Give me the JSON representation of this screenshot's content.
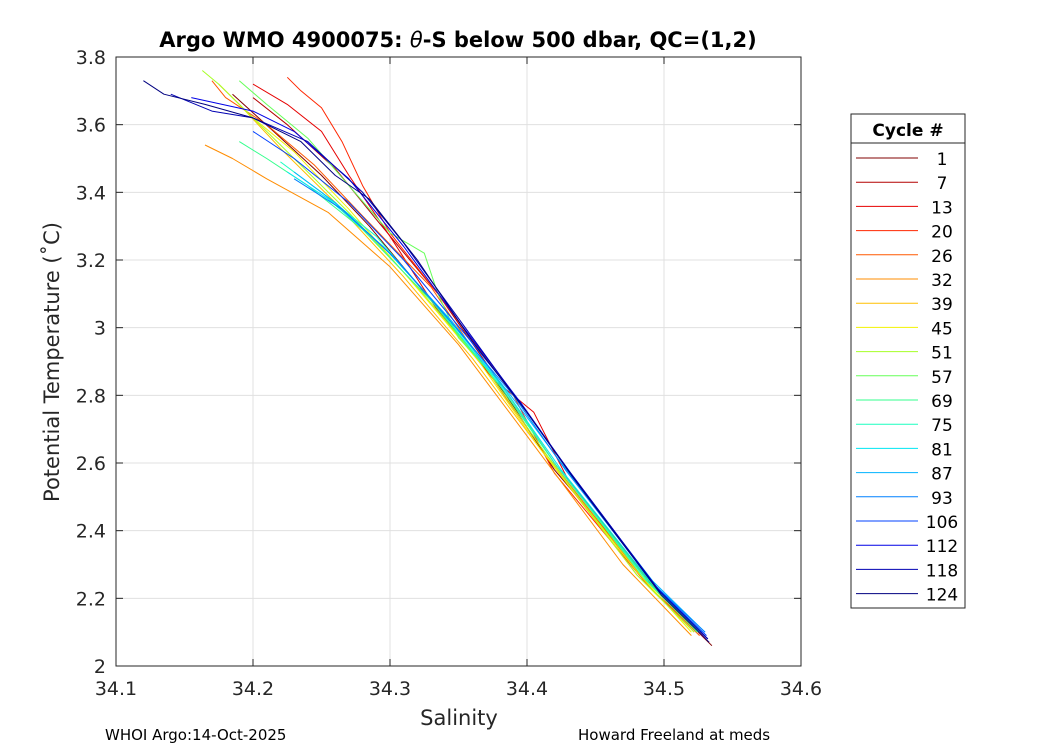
{
  "chart_data": {
    "type": "line",
    "title_prefix": "Argo WMO 4900075: ",
    "title_symbol": "θ",
    "title_suffix": "-S below 500 dbar,  QC=(1,2)",
    "xlabel": "Salinity",
    "ylabel": "Potential Temperature (˚C)",
    "xlim": [
      34.1,
      34.6
    ],
    "ylim": [
      2.0,
      3.8
    ],
    "xticks": [
      34.1,
      34.2,
      34.3,
      34.4,
      34.5,
      34.6
    ],
    "xtick_labels": [
      "34.1",
      "34.2",
      "34.3",
      "34.4",
      "34.5",
      "34.6"
    ],
    "yticks": [
      2.0,
      2.2,
      2.4,
      2.6,
      2.8,
      3.0,
      3.2,
      3.4,
      3.6,
      3.8
    ],
    "ytick_labels": [
      "2",
      "2.2",
      "2.4",
      "2.6",
      "2.8",
      "3",
      "3.2",
      "3.4",
      "3.6",
      "3.8"
    ],
    "grid": true,
    "legend": {
      "title": "Cycle #",
      "placement": "right-outside",
      "entries": [
        {
          "label": "1",
          "color": "#800000"
        },
        {
          "label": "7",
          "color": "#b30000"
        },
        {
          "label": "13",
          "color": "#e60000"
        },
        {
          "label": "20",
          "color": "#ff2600"
        },
        {
          "label": "26",
          "color": "#ff5900"
        },
        {
          "label": "32",
          "color": "#ff8c00"
        },
        {
          "label": "39",
          "color": "#ffbf00"
        },
        {
          "label": "45",
          "color": "#f2f200"
        },
        {
          "label": "51",
          "color": "#a6ff26"
        },
        {
          "label": "57",
          "color": "#66ff59"
        },
        {
          "label": "69",
          "color": "#33ff8c"
        },
        {
          "label": "75",
          "color": "#1affbf"
        },
        {
          "label": "81",
          "color": "#00e6f2"
        },
        {
          "label": "87",
          "color": "#00b3ff"
        },
        {
          "label": "93",
          "color": "#0080ff"
        },
        {
          "label": "106",
          "color": "#0040ff"
        },
        {
          "label": "112",
          "color": "#0000e6"
        },
        {
          "label": "118",
          "color": "#0000b3"
        },
        {
          "label": "124",
          "color": "#000080"
        }
      ]
    },
    "series": [
      {
        "name": "1",
        "color": "#800000",
        "points": [
          [
            34.535,
            2.06
          ],
          [
            34.5,
            2.2
          ],
          [
            34.42,
            2.58
          ],
          [
            34.385,
            2.8
          ],
          [
            34.33,
            3.08
          ],
          [
            34.285,
            3.3
          ],
          [
            34.25,
            3.45
          ],
          [
            34.215,
            3.58
          ],
          [
            34.185,
            3.69
          ]
        ]
      },
      {
        "name": "7",
        "color": "#b30000",
        "points": [
          [
            34.532,
            2.08
          ],
          [
            34.495,
            2.22
          ],
          [
            34.42,
            2.6
          ],
          [
            34.39,
            2.78
          ],
          [
            34.335,
            3.1
          ],
          [
            34.29,
            3.32
          ],
          [
            34.26,
            3.47
          ],
          [
            34.225,
            3.6
          ],
          [
            34.2,
            3.68
          ]
        ]
      },
      {
        "name": "13",
        "color": "#e60000",
        "points": [
          [
            34.53,
            2.08
          ],
          [
            34.49,
            2.25
          ],
          [
            34.43,
            2.55
          ],
          [
            34.405,
            2.75
          ],
          [
            34.375,
            2.85
          ],
          [
            34.335,
            3.05
          ],
          [
            34.3,
            3.27
          ],
          [
            34.27,
            3.45
          ],
          [
            34.25,
            3.58
          ],
          [
            34.225,
            3.66
          ],
          [
            34.2,
            3.72
          ]
        ]
      },
      {
        "name": "20",
        "color": "#ff2600",
        "points": [
          [
            34.528,
            2.09
          ],
          [
            34.49,
            2.23
          ],
          [
            34.42,
            2.57
          ],
          [
            34.39,
            2.8
          ],
          [
            34.335,
            3.1
          ],
          [
            34.3,
            3.28
          ],
          [
            34.28,
            3.42
          ],
          [
            34.265,
            3.55
          ],
          [
            34.25,
            3.65
          ],
          [
            34.235,
            3.7
          ],
          [
            34.225,
            3.74
          ]
        ]
      },
      {
        "name": "26",
        "color": "#ff5900",
        "points": [
          [
            34.526,
            2.09
          ],
          [
            34.488,
            2.24
          ],
          [
            34.415,
            2.62
          ],
          [
            34.385,
            2.79
          ],
          [
            34.33,
            3.12
          ],
          [
            34.28,
            3.33
          ],
          [
            34.245,
            3.48
          ],
          [
            34.21,
            3.6
          ],
          [
            34.18,
            3.68
          ],
          [
            34.17,
            3.73
          ]
        ]
      },
      {
        "name": "32",
        "color": "#ff8c00",
        "points": [
          [
            34.52,
            2.09
          ],
          [
            34.47,
            2.3
          ],
          [
            34.4,
            2.68
          ],
          [
            34.35,
            2.95
          ],
          [
            34.3,
            3.18
          ],
          [
            34.255,
            3.34
          ],
          [
            34.21,
            3.44
          ],
          [
            34.185,
            3.5
          ],
          [
            34.165,
            3.54
          ]
        ]
      },
      {
        "name": "39",
        "color": "#ffbf00",
        "points": [
          [
            34.522,
            2.1
          ],
          [
            34.48,
            2.27
          ],
          [
            34.41,
            2.64
          ],
          [
            34.36,
            2.91
          ],
          [
            34.31,
            3.15
          ],
          [
            34.26,
            3.37
          ],
          [
            34.22,
            3.53
          ],
          [
            34.19,
            3.66
          ],
          [
            34.175,
            3.72
          ]
        ]
      },
      {
        "name": "45",
        "color": "#f2f200",
        "points": [
          [
            34.52,
            2.1
          ],
          [
            34.48,
            2.28
          ],
          [
            34.41,
            2.64
          ],
          [
            34.365,
            2.9
          ],
          [
            34.315,
            3.14
          ],
          [
            34.27,
            3.35
          ],
          [
            34.23,
            3.52
          ],
          [
            34.2,
            3.62
          ],
          [
            34.185,
            3.68
          ]
        ]
      },
      {
        "name": "51",
        "color": "#a6ff26",
        "points": [
          [
            34.522,
            2.1
          ],
          [
            34.48,
            2.27
          ],
          [
            34.415,
            2.62
          ],
          [
            34.37,
            2.88
          ],
          [
            34.32,
            3.12
          ],
          [
            34.27,
            3.34
          ],
          [
            34.23,
            3.5
          ],
          [
            34.195,
            3.64
          ],
          [
            34.175,
            3.72
          ],
          [
            34.163,
            3.76
          ]
        ]
      },
      {
        "name": "57",
        "color": "#66ff59",
        "points": [
          [
            34.524,
            2.1
          ],
          [
            34.485,
            2.26
          ],
          [
            34.42,
            2.6
          ],
          [
            34.38,
            2.84
          ],
          [
            34.35,
            2.97
          ],
          [
            34.335,
            3.1
          ],
          [
            34.325,
            3.22
          ],
          [
            34.3,
            3.28
          ],
          [
            34.27,
            3.42
          ],
          [
            34.24,
            3.56
          ],
          [
            34.21,
            3.66
          ],
          [
            34.19,
            3.73
          ]
        ]
      },
      {
        "name": "69",
        "color": "#33ff8c",
        "points": [
          [
            34.525,
            2.1
          ],
          [
            34.487,
            2.26
          ],
          [
            34.42,
            2.6
          ],
          [
            34.38,
            2.83
          ],
          [
            34.33,
            3.08
          ],
          [
            34.28,
            3.29
          ],
          [
            34.24,
            3.42
          ],
          [
            34.21,
            3.5
          ],
          [
            34.19,
            3.55
          ]
        ]
      },
      {
        "name": "75",
        "color": "#1affbf",
        "points": [
          [
            34.526,
            2.1
          ],
          [
            34.488,
            2.25
          ],
          [
            34.42,
            2.6
          ],
          [
            34.382,
            2.82
          ],
          [
            34.335,
            3.06
          ],
          [
            34.29,
            3.27
          ],
          [
            34.25,
            3.4
          ],
          [
            34.22,
            3.49
          ]
        ]
      },
      {
        "name": "81",
        "color": "#00e6f2",
        "points": [
          [
            34.528,
            2.1
          ],
          [
            34.49,
            2.25
          ],
          [
            34.425,
            2.58
          ],
          [
            34.385,
            2.81
          ],
          [
            34.34,
            3.04
          ],
          [
            34.295,
            3.24
          ],
          [
            34.255,
            3.38
          ],
          [
            34.225,
            3.46
          ]
        ]
      },
      {
        "name": "87",
        "color": "#00b3ff",
        "points": [
          [
            34.53,
            2.1
          ],
          [
            34.492,
            2.25
          ],
          [
            34.425,
            2.6
          ],
          [
            34.388,
            2.8
          ],
          [
            34.345,
            3.02
          ],
          [
            34.3,
            3.22
          ],
          [
            34.26,
            3.37
          ],
          [
            34.23,
            3.46
          ]
        ]
      },
      {
        "name": "93",
        "color": "#0080ff",
        "points": [
          [
            34.53,
            2.1
          ],
          [
            34.493,
            2.24
          ],
          [
            34.428,
            2.58
          ],
          [
            34.39,
            2.8
          ],
          [
            34.348,
            3.0
          ],
          [
            34.305,
            3.2
          ],
          [
            34.265,
            3.35
          ],
          [
            34.23,
            3.44
          ]
        ]
      },
      {
        "name": "106",
        "color": "#0040ff",
        "points": [
          [
            34.531,
            2.09
          ],
          [
            34.495,
            2.23
          ],
          [
            34.43,
            2.58
          ],
          [
            34.395,
            2.78
          ],
          [
            34.355,
            2.98
          ],
          [
            34.31,
            3.2
          ],
          [
            34.27,
            3.37
          ],
          [
            34.23,
            3.5
          ],
          [
            34.2,
            3.58
          ]
        ]
      },
      {
        "name": "112",
        "color": "#0000e6",
        "points": [
          [
            34.532,
            2.08
          ],
          [
            34.497,
            2.22
          ],
          [
            34.43,
            2.58
          ],
          [
            34.395,
            2.78
          ],
          [
            34.35,
            3.02
          ],
          [
            34.31,
            3.24
          ],
          [
            34.27,
            3.44
          ],
          [
            34.23,
            3.58
          ],
          [
            34.2,
            3.64
          ],
          [
            34.155,
            3.68
          ]
        ]
      },
      {
        "name": "118",
        "color": "#0000b3",
        "points": [
          [
            34.532,
            2.08
          ],
          [
            34.497,
            2.22
          ],
          [
            34.432,
            2.57
          ],
          [
            34.398,
            2.76
          ],
          [
            34.355,
            3.0
          ],
          [
            34.31,
            3.25
          ],
          [
            34.28,
            3.4
          ],
          [
            34.24,
            3.55
          ],
          [
            34.2,
            3.62
          ],
          [
            34.17,
            3.64
          ],
          [
            34.14,
            3.69
          ]
        ]
      },
      {
        "name": "124",
        "color": "#000080",
        "points": [
          [
            34.533,
            2.07
          ],
          [
            34.498,
            2.21
          ],
          [
            34.433,
            2.56
          ],
          [
            34.4,
            2.75
          ],
          [
            34.36,
            2.96
          ],
          [
            34.32,
            3.2
          ],
          [
            34.285,
            3.38
          ],
          [
            34.26,
            3.45
          ],
          [
            34.235,
            3.55
          ],
          [
            34.2,
            3.62
          ],
          [
            34.165,
            3.66
          ],
          [
            34.135,
            3.69
          ],
          [
            34.12,
            3.73
          ]
        ]
      }
    ]
  },
  "footer": {
    "left": "WHOI Argo:14-Oct-2025",
    "right": "Howard Freeland at meds"
  }
}
